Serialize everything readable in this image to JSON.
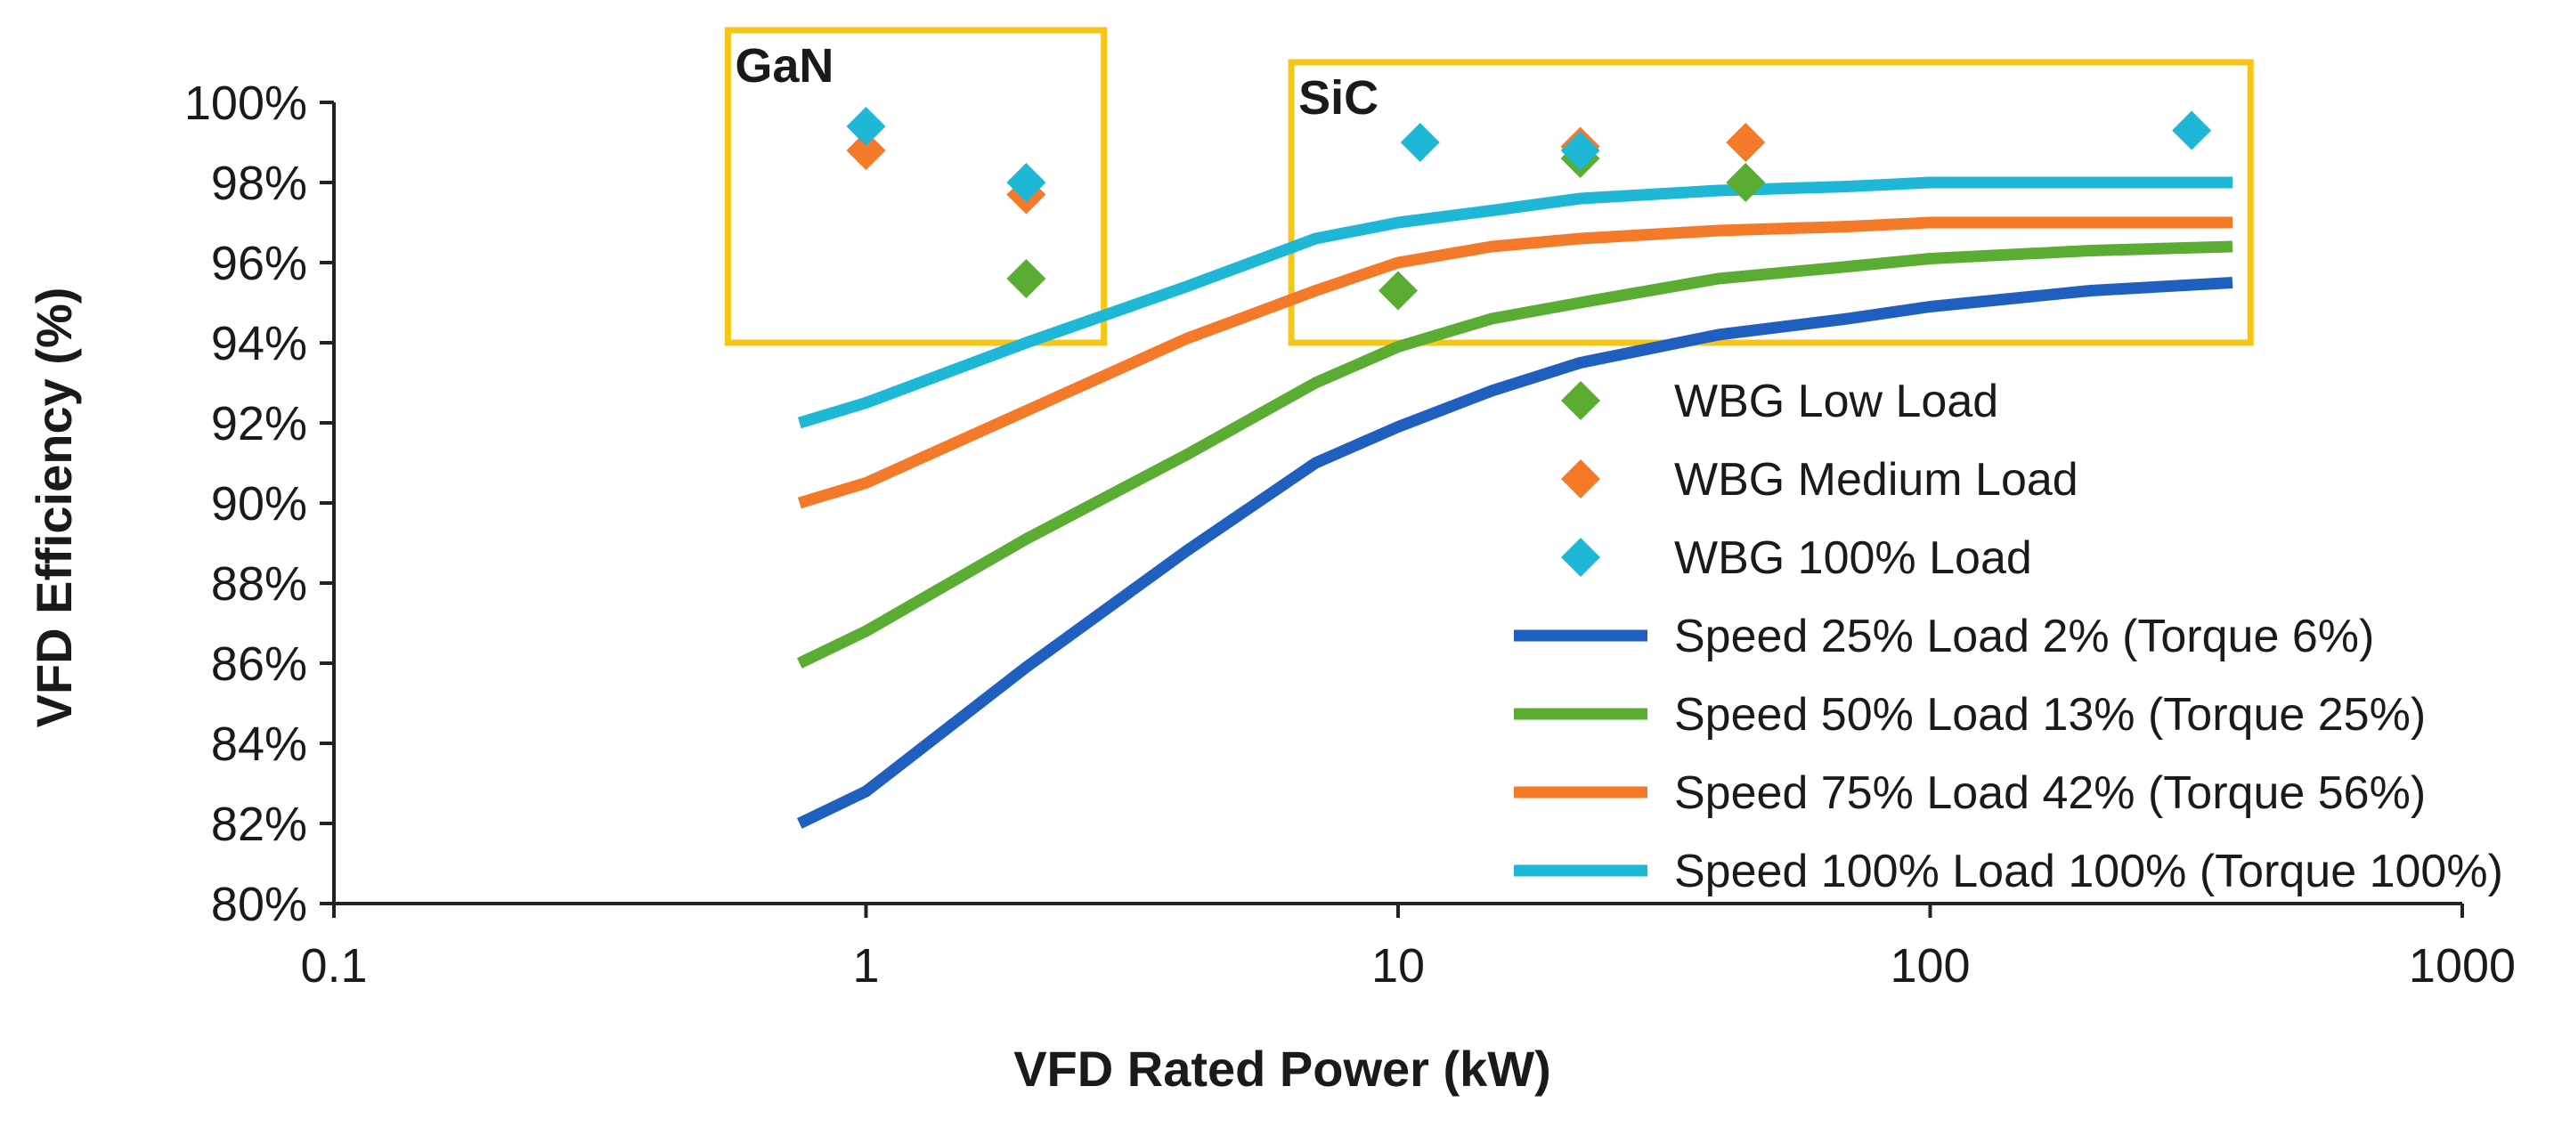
{
  "chart_data": {
    "type": "line",
    "xscale": "log",
    "xlim": [
      0.1,
      1000
    ],
    "ylim": [
      80,
      100
    ],
    "xlabel": "VFD Rated Power (kW)",
    "ylabel": "VFD Efficiency (%)",
    "x_ticks": [
      {
        "value": 0.1,
        "label": "0.1"
      },
      {
        "value": 1,
        "label": "1"
      },
      {
        "value": 10,
        "label": "10"
      },
      {
        "value": 100,
        "label": "100"
      },
      {
        "value": 1000,
        "label": "1000"
      }
    ],
    "y_ticks": [
      {
        "value": 80,
        "label": "80%"
      },
      {
        "value": 82,
        "label": "82%"
      },
      {
        "value": 84,
        "label": "84%"
      },
      {
        "value": 86,
        "label": "86%"
      },
      {
        "value": 88,
        "label": "88%"
      },
      {
        "value": 90,
        "label": "90%"
      },
      {
        "value": 92,
        "label": "92%"
      },
      {
        "value": 94,
        "label": "94%"
      },
      {
        "value": 96,
        "label": "96%"
      },
      {
        "value": 98,
        "label": "98%"
      },
      {
        "value": 100,
        "label": "100%"
      }
    ],
    "grid": false,
    "legend_position": "right",
    "series": [
      {
        "name": "Speed 25% Load 2% (Torque 6%)",
        "kind": "line",
        "color": "#1f5fbf",
        "points": [
          [
            0.75,
            82.0
          ],
          [
            1.0,
            82.8
          ],
          [
            2.0,
            85.9
          ],
          [
            4.0,
            88.8
          ],
          [
            7.0,
            91.0
          ],
          [
            10.0,
            91.9
          ],
          [
            15.0,
            92.8
          ],
          [
            22.0,
            93.5
          ],
          [
            40.0,
            94.2
          ],
          [
            70.0,
            94.6
          ],
          [
            100.0,
            94.9
          ],
          [
            200.0,
            95.3
          ],
          [
            370.0,
            95.5
          ]
        ]
      },
      {
        "name": "Speed 50% Load 13% (Torque 25%)",
        "kind": "line",
        "color": "#5aac33",
        "points": [
          [
            0.75,
            86.0
          ],
          [
            1.0,
            86.8
          ],
          [
            2.0,
            89.1
          ],
          [
            4.0,
            91.2
          ],
          [
            7.0,
            93.0
          ],
          [
            10.0,
            93.9
          ],
          [
            15.0,
            94.6
          ],
          [
            22.0,
            95.0
          ],
          [
            40.0,
            95.6
          ],
          [
            70.0,
            95.9
          ],
          [
            100.0,
            96.1
          ],
          [
            200.0,
            96.3
          ],
          [
            370.0,
            96.4
          ]
        ]
      },
      {
        "name": "Speed 75% Load 42% (Torque 56%)",
        "kind": "line",
        "color": "#f47a2a",
        "points": [
          [
            0.75,
            90.0
          ],
          [
            1.0,
            90.5
          ],
          [
            2.0,
            92.3
          ],
          [
            4.0,
            94.1
          ],
          [
            7.0,
            95.3
          ],
          [
            10.0,
            96.0
          ],
          [
            15.0,
            96.4
          ],
          [
            22.0,
            96.6
          ],
          [
            40.0,
            96.8
          ],
          [
            70.0,
            96.9
          ],
          [
            100.0,
            97.0
          ],
          [
            200.0,
            97.0
          ],
          [
            370.0,
            97.0
          ]
        ]
      },
      {
        "name": "Speed 100% Load 100% (Torque 100%)",
        "kind": "line",
        "color": "#1fb7d6",
        "points": [
          [
            0.75,
            92.0
          ],
          [
            1.0,
            92.5
          ],
          [
            2.0,
            94.0
          ],
          [
            4.0,
            95.4
          ],
          [
            7.0,
            96.6
          ],
          [
            10.0,
            97.0
          ],
          [
            15.0,
            97.3
          ],
          [
            22.0,
            97.6
          ],
          [
            40.0,
            97.8
          ],
          [
            70.0,
            97.9
          ],
          [
            100.0,
            98.0
          ],
          [
            200.0,
            98.0
          ],
          [
            370.0,
            98.0
          ]
        ]
      },
      {
        "name": "WBG Low Load",
        "kind": "scatter",
        "marker": "diamond",
        "color": "#5aac33",
        "points": [
          [
            2.0,
            95.6
          ],
          [
            10.0,
            95.3
          ],
          [
            22.0,
            98.6
          ],
          [
            45.0,
            98.0
          ]
        ]
      },
      {
        "name": "WBG Medium Load",
        "kind": "scatter",
        "marker": "diamond",
        "color": "#f47a2a",
        "points": [
          [
            1.0,
            98.8
          ],
          [
            2.0,
            97.7
          ],
          [
            22.0,
            98.9
          ],
          [
            45.0,
            99.0
          ]
        ]
      },
      {
        "name": "WBG 100% Load",
        "kind": "scatter",
        "marker": "diamond",
        "color": "#1fb7d6",
        "points": [
          [
            1.0,
            99.4
          ],
          [
            2.0,
            98.0
          ],
          [
            11.0,
            99.0
          ],
          [
            22.0,
            98.8
          ],
          [
            310.0,
            99.3
          ]
        ]
      }
    ],
    "legend_order": [
      "WBG Low Load",
      "WBG Medium Load",
      "WBG 100% Load",
      "Speed 25% Load 2% (Torque 6%)",
      "Speed 50% Load 13% (Torque 25%)",
      "Speed 75% Load 42% (Torque 56%)",
      "Speed 100% Load 100% (Torque 100%)"
    ],
    "annotations": [
      {
        "label": "GaN",
        "color": "#f5c518",
        "x_range": [
          0.55,
          2.8
        ],
        "y_range": [
          94.0,
          101.8
        ]
      },
      {
        "label": "SiC",
        "color": "#f5c518",
        "x_range": [
          6.3,
          400.0
        ],
        "y_range": [
          94.0,
          101.0
        ]
      }
    ]
  }
}
